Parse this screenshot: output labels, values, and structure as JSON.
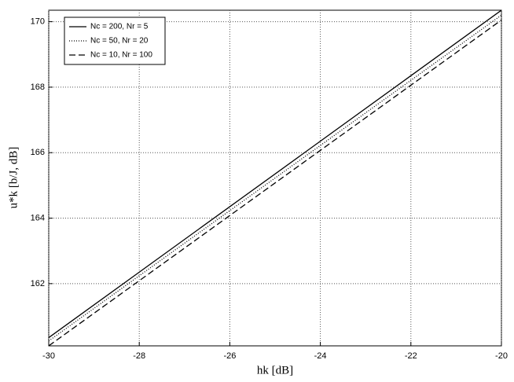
{
  "chart_data": {
    "type": "line",
    "xlabel": "hk [dB]",
    "ylabel": "u*k [b/J, dB]",
    "x": [
      -30,
      -28,
      -26,
      -24,
      -22,
      -20
    ],
    "series": [
      {
        "name": "Nc = 200, Nr = 5",
        "color": "#000000",
        "dash": "solid",
        "values": [
          160.35,
          162.35,
          164.35,
          166.35,
          168.35,
          170.35
        ]
      },
      {
        "name": "Nc = 50, Nr = 20",
        "color": "#000000",
        "dash": "dotted",
        "values": [
          160.25,
          162.24,
          164.23,
          166.22,
          168.21,
          170.2
        ]
      },
      {
        "name": "Nc = 10, Nr = 100",
        "color": "#000000",
        "dash": "dashed",
        "values": [
          160.1,
          162.09,
          164.08,
          166.07,
          168.06,
          170.05
        ]
      }
    ],
    "xlim": [
      -30,
      -20
    ],
    "xticks": [
      -30,
      -28,
      -26,
      -24,
      -22,
      -20
    ],
    "ylim": [
      160.1,
      170.35
    ],
    "yticks": [
      162,
      164,
      166,
      168,
      170
    ],
    "grid": true,
    "legend": "upper-left"
  }
}
